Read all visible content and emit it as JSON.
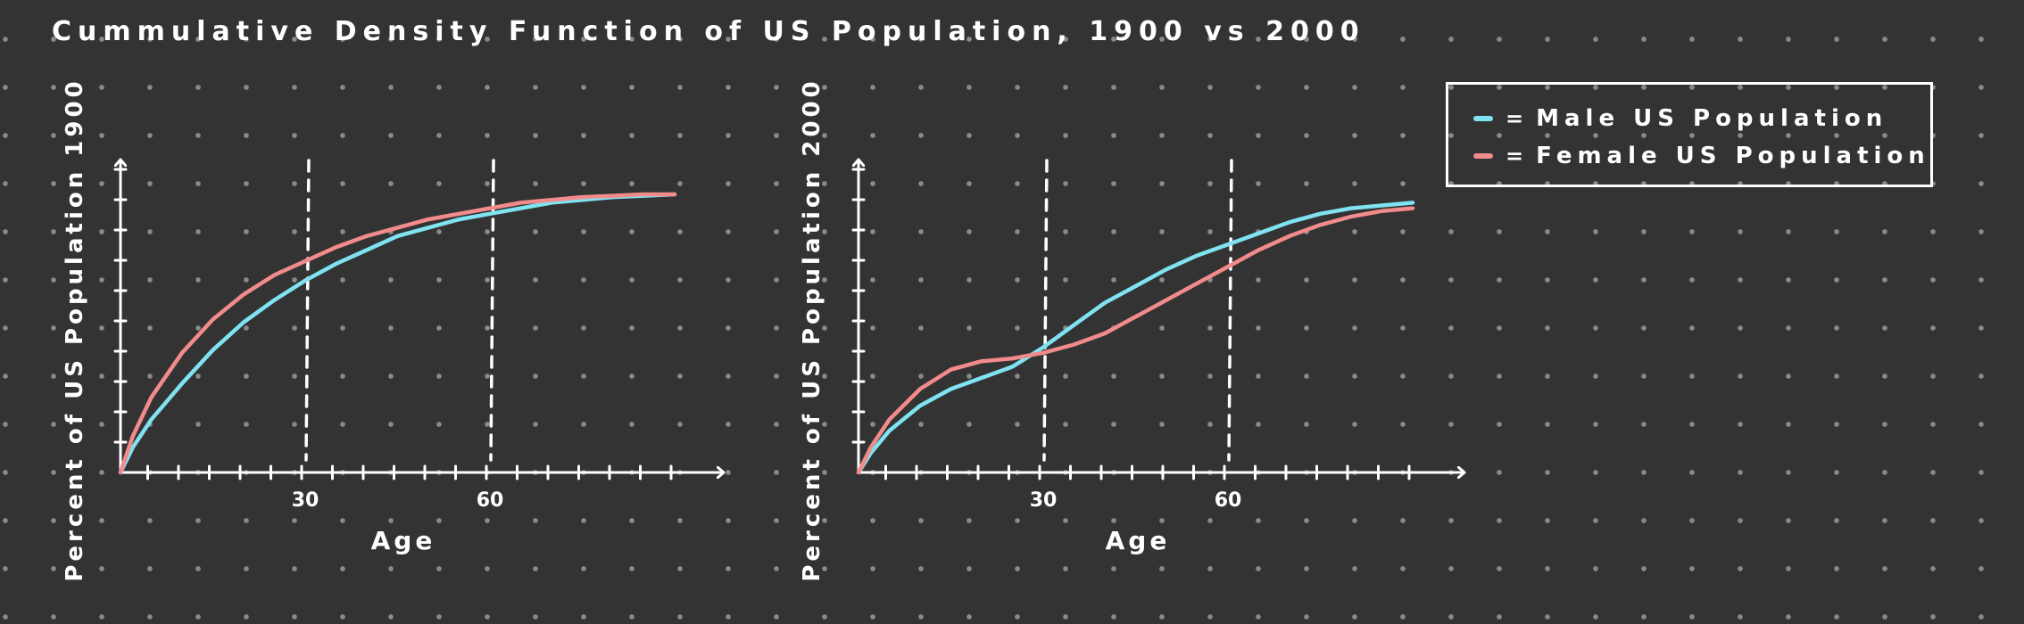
{
  "chart_data": [
    {
      "type": "line",
      "title": "Cummulative Density Function of US Population, 1900 vs 2000",
      "xlabel": "Age",
      "ylabel": "Percent of US Population 1900",
      "xlim": [
        0,
        96
      ],
      "ylim": [
        0,
        1
      ],
      "xtick_labels": [
        {
          "value": 30,
          "label": "30"
        },
        {
          "value": 60,
          "label": "60"
        }
      ],
      "reference_lines_x": [
        30,
        60
      ],
      "grid": false,
      "legend_position": "top-right",
      "series": [
        {
          "name": "Male US Population",
          "color": "#7fe3f2",
          "x": [
            0,
            2,
            5,
            10,
            15,
            20,
            25,
            30,
            35,
            40,
            45,
            50,
            55,
            60,
            65,
            70,
            75,
            80,
            85,
            90
          ],
          "y": [
            0,
            0.09,
            0.19,
            0.32,
            0.44,
            0.54,
            0.62,
            0.69,
            0.75,
            0.8,
            0.85,
            0.88,
            0.91,
            0.93,
            0.95,
            0.97,
            0.98,
            0.99,
            0.995,
            1.0
          ]
        },
        {
          "name": "Female US Population",
          "color": "#f28b8b",
          "x": [
            0,
            2,
            5,
            10,
            15,
            20,
            25,
            30,
            35,
            40,
            45,
            50,
            55,
            60,
            65,
            70,
            75,
            80,
            85,
            90
          ],
          "y": [
            0,
            0.13,
            0.27,
            0.43,
            0.55,
            0.64,
            0.71,
            0.76,
            0.81,
            0.85,
            0.88,
            0.91,
            0.93,
            0.95,
            0.97,
            0.98,
            0.99,
            0.995,
            1.0,
            1.0
          ]
        }
      ]
    },
    {
      "type": "line",
      "title": "",
      "xlabel": "Age",
      "ylabel": "Percent of US Population 2000",
      "xlim": [
        0,
        96
      ],
      "ylim": [
        0,
        1
      ],
      "xtick_labels": [
        {
          "value": 30,
          "label": "30"
        },
        {
          "value": 60,
          "label": "60"
        }
      ],
      "reference_lines_x": [
        30,
        60
      ],
      "grid": false,
      "series": [
        {
          "name": "Male US Population",
          "color": "#7fe3f2",
          "x": [
            0,
            2,
            5,
            10,
            15,
            20,
            25,
            30,
            35,
            40,
            45,
            50,
            55,
            60,
            65,
            70,
            75,
            80,
            85,
            90
          ],
          "y": [
            0,
            0.07,
            0.15,
            0.24,
            0.3,
            0.34,
            0.38,
            0.45,
            0.53,
            0.61,
            0.67,
            0.73,
            0.78,
            0.82,
            0.86,
            0.9,
            0.93,
            0.95,
            0.96,
            0.97
          ]
        },
        {
          "name": "Female US Population",
          "color": "#f28b8b",
          "x": [
            0,
            2,
            5,
            10,
            15,
            20,
            25,
            30,
            35,
            40,
            45,
            50,
            55,
            60,
            65,
            70,
            75,
            80,
            85,
            90
          ],
          "y": [
            0,
            0.09,
            0.19,
            0.3,
            0.37,
            0.4,
            0.41,
            0.43,
            0.46,
            0.5,
            0.56,
            0.62,
            0.68,
            0.74,
            0.8,
            0.85,
            0.89,
            0.92,
            0.94,
            0.95
          ]
        }
      ]
    }
  ],
  "legend": {
    "items": [
      {
        "label": "Male US Population",
        "color": "#7fe3f2",
        "separator": "="
      },
      {
        "label": "Female US Population",
        "color": "#f28b8b",
        "separator": "="
      }
    ]
  },
  "colors": {
    "background": "#333333",
    "foreground": "#ffffff",
    "dot": "#8a8a8a"
  }
}
